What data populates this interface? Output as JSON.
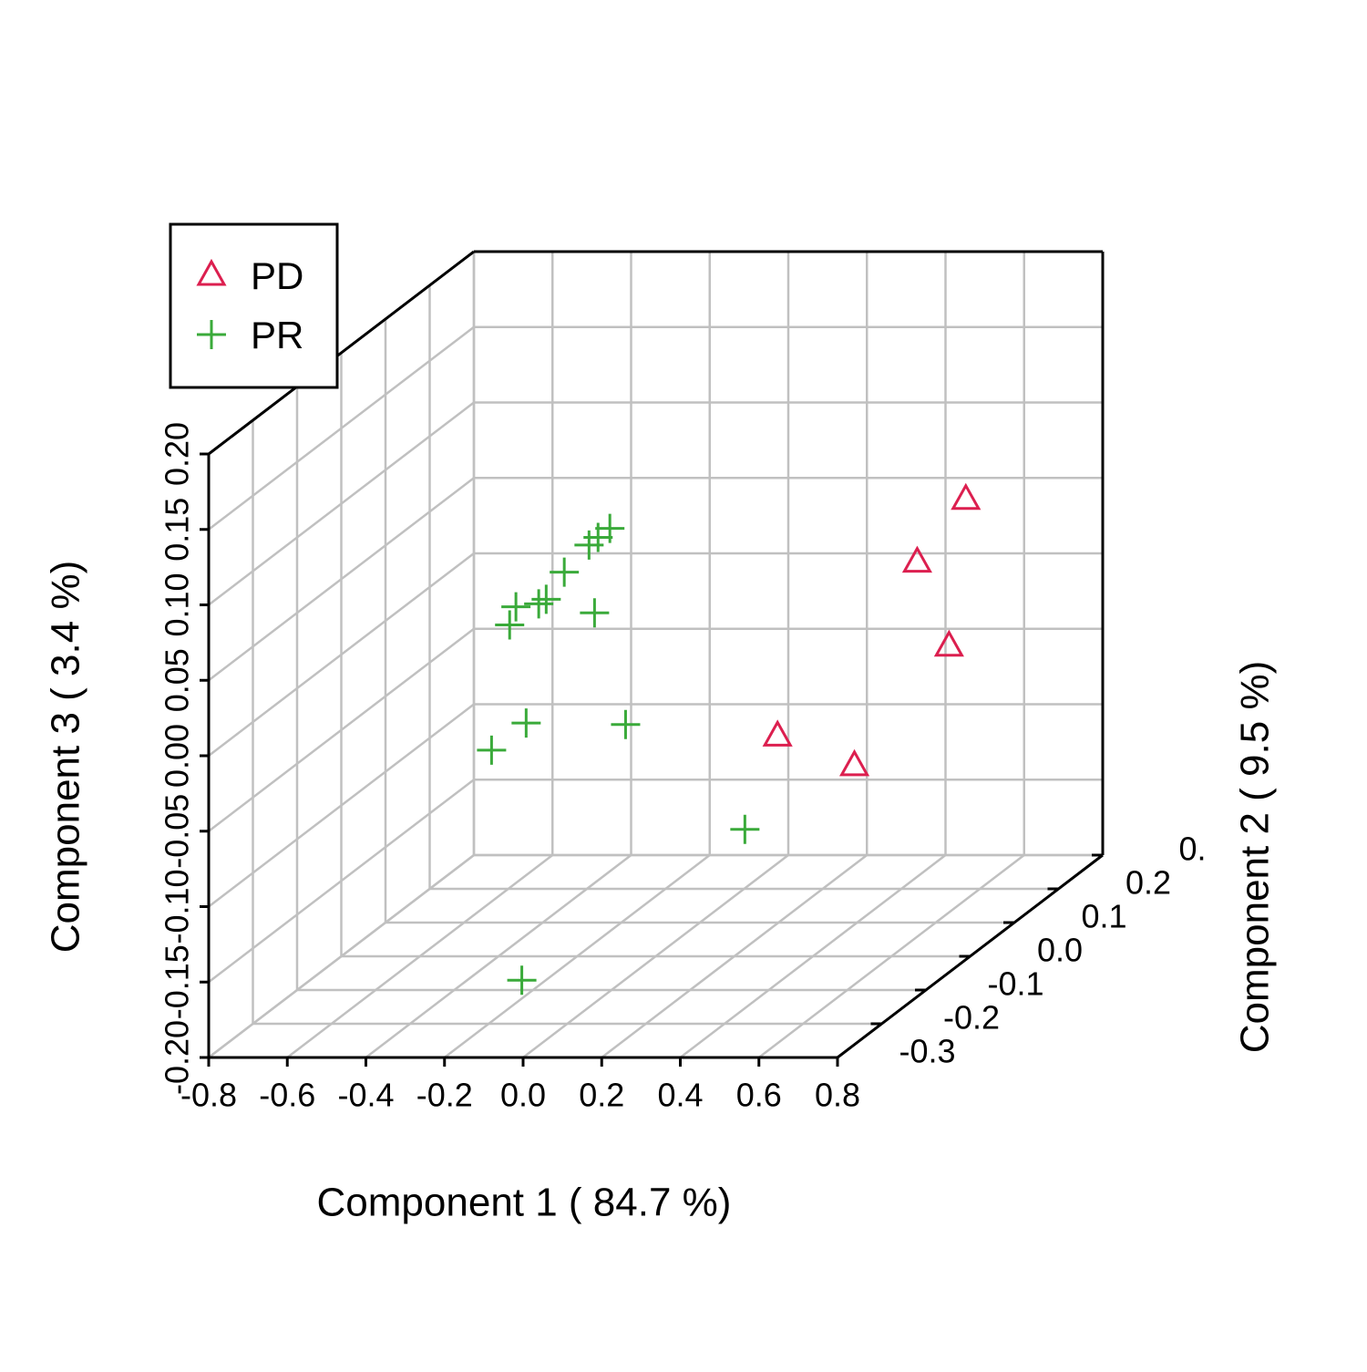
{
  "chart_data": {
    "type": "scatter3d",
    "x_label": "Component 1 ( 84.7 %)",
    "y_label": "Component 2 ( 9.5 %)",
    "z_label": "Component 3 ( 3.4 %)",
    "xlim": [
      -0.8,
      0.8
    ],
    "ylim": [
      -0.4,
      0.2
    ],
    "zlim": [
      -0.2,
      0.2
    ],
    "xticks": [
      -0.8,
      -0.6,
      -0.4,
      -0.2,
      {
        "value": 0,
        "label": "0.0"
      },
      0.2,
      0.4,
      0.6,
      0.8
    ],
    "yticks": [
      -0.3,
      -0.2,
      -0.1,
      {
        "value": 0,
        "label": "0.0"
      },
      0.1,
      0.2,
      {
        "value": 0.3,
        "label": "0."
      }
    ],
    "zticks": [
      {
        "value": -0.2,
        "label": "-0.20"
      },
      -0.15,
      {
        "value": -0.1,
        "label": "-0.10"
      },
      -0.05,
      {
        "value": 0,
        "label": "0.00"
      },
      0.05,
      {
        "value": 0.1,
        "label": "0.10"
      },
      0.15,
      {
        "value": 0.2,
        "label": "0.20"
      }
    ],
    "grid": true,
    "legend_position": "top-left",
    "series": [
      {
        "name": "PD",
        "color": "#dc1f4f",
        "marker": "triangle",
        "x": [
          0.644,
          0.473,
          0.698,
          0.31,
          0.554
        ],
        "y": [
          0.029,
          0.071,
          -0.057,
          -0.1,
          -0.143
        ],
        "z": [
          0.074,
          0.023,
          -0.004,
          -0.054,
          -0.064
        ]
      },
      {
        "name": "PR",
        "color": "#3aaa3a",
        "marker": "plus",
        "x": [
          -0.165,
          -0.195,
          -0.218,
          -0.281,
          -0.327,
          -0.346,
          -0.404,
          -0.42,
          -0.204,
          -0.378,
          -0.466,
          -0.125,
          0.372,
          -0.1
        ],
        "y": [
          -0.057,
          -0.057,
          -0.057,
          -0.057,
          -0.057,
          -0.057,
          -0.057,
          -0.057,
          -0.057,
          -0.057,
          -0.057,
          -0.057,
          -0.229,
          -0.314
        ],
        "z": [
          0.074,
          0.068,
          0.063,
          0.045,
          0.027,
          0.024,
          0.022,
          0.01,
          0.018,
          -0.055,
          -0.073,
          -0.056,
          -0.087,
          -0.168
        ]
      }
    ]
  }
}
